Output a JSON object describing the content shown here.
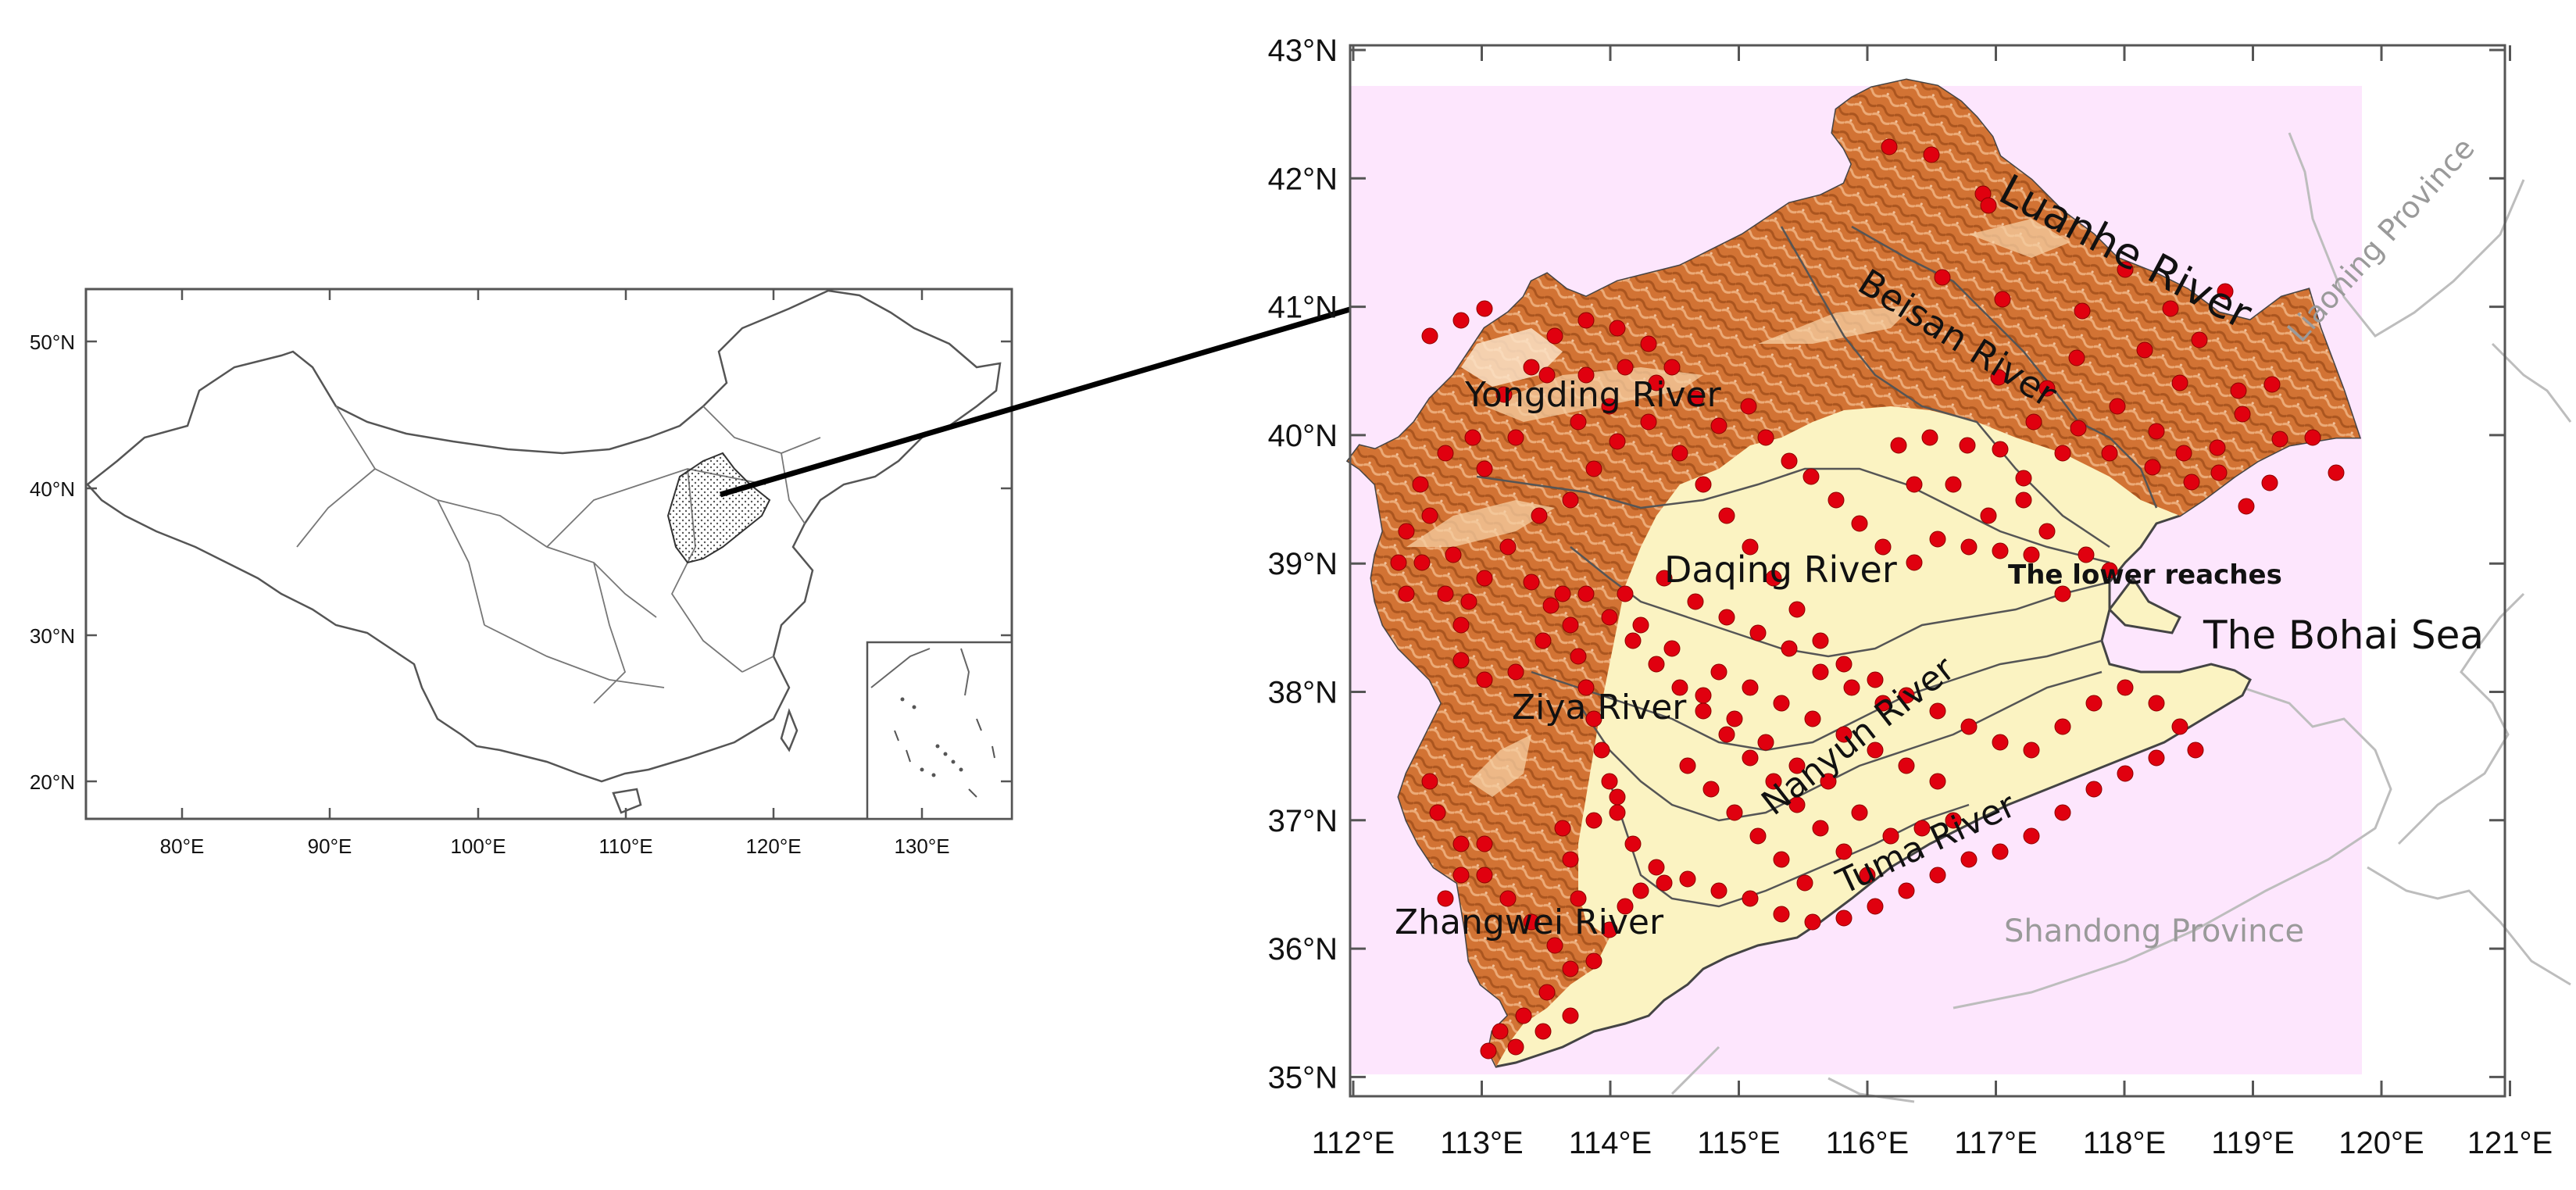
{
  "inset_map": {
    "lat_ticks": [
      "50°N",
      "40°N",
      "30°N",
      "20°N"
    ],
    "lon_ticks": [
      "80°E",
      "90°E",
      "100°E",
      "110°E",
      "120°E",
      "130°E"
    ]
  },
  "main_map": {
    "lat_ticks": [
      "43°N",
      "42°N",
      "41°N",
      "40°N",
      "39°N",
      "38°N",
      "37°N",
      "36°N",
      "35°N"
    ],
    "lon_ticks": [
      "112°E",
      "113°E",
      "114°E",
      "115°E",
      "116°E",
      "117°E",
      "118°E",
      "119°E",
      "120°E",
      "121°E"
    ],
    "labels": {
      "luanhe": "Luanhe River",
      "beisan": "Beisan River",
      "yongding": "Yongding River",
      "daqing": "Daqing River",
      "lower": "The lower reaches",
      "bohai": "The Bohai Sea",
      "ziya": "Ziya River",
      "nanyun": "Nanyun River",
      "tuma": "Tuma River",
      "zhangwei": "Zhangwei River",
      "liaoning": "Liaoning Province",
      "shandong": "Shandong Province"
    },
    "station_color": "#e0000f"
  },
  "colors": {
    "sea_background": "#fde6fd",
    "plain": "#fbf3c2",
    "mountain": "#d9793a",
    "mountain_light": "#f0b27a",
    "coastline": "#b9b9b9",
    "arrow": "#000000"
  }
}
